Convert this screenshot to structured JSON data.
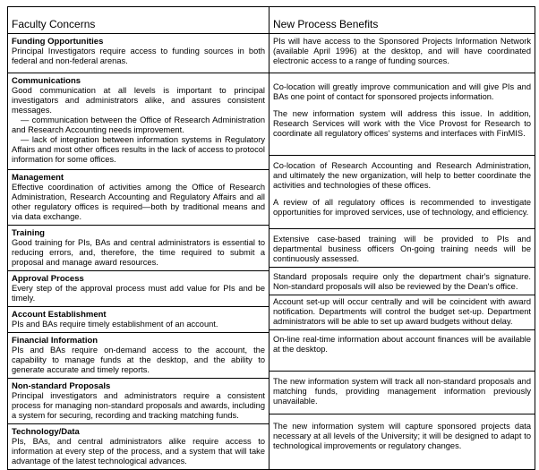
{
  "headers": {
    "left": "Faculty Concerns",
    "right": "New Process Benefits"
  },
  "concerns": [
    {
      "title": "Funding Opportunities",
      "text": [
        "Principal Investigators require access  to funding sources in both federal and non-federal arenas."
      ]
    },
    {
      "title": "Communications",
      "text": [
        "Good communication at all levels is important to principal investigators and administrators alike, and assures consistent messages.",
        "— communication between the Office of Research Administration and Research Accounting needs improvement.",
        "— lack of integration between information systems in Regulatory Affairs and most other offices results in the lack of access to protocol information for some offices."
      ]
    },
    {
      "title": "Management",
      "text": [
        "Effective coordination of activities among the Office of Research Administration, Research Accounting and Regulatory Affairs and all other regulatory offices is required—both by traditional means and via data exchange."
      ]
    },
    {
      "title": "Training",
      "text": [
        "Good training for PIs, BAs and central administrators is essential to reducing errors, and, therefore, the time required to submit a proposal and manage award resources."
      ]
    },
    {
      "title": "Approval Process",
      "text": [
        "Every step of the approval process must add value for PIs and be timely."
      ]
    },
    {
      "title": "Account Establishment",
      "text": [
        "PIs and BAs require timely establishment of an account."
      ]
    },
    {
      "title": "Financial Information",
      "text": [
        "PIs and BAs require on-demand access to the account, the capability to manage funds at the desktop, and the ability to generate accurate and timely reports."
      ]
    },
    {
      "title": "Non-standard Proposals",
      "text": [
        "Principal investigators and administrators require a consistent process for managing non-standard proposals and awards, including a system for securing, recording and tracking matching funds."
      ]
    },
    {
      "title": "Technology/Data",
      "text": [
        "PIs, BAs, and central administrators alike require access to information at every step of the process, and a system that will take advantage of the latest technological advances."
      ]
    }
  ],
  "benefits": [
    [
      "PIs will have access to the Sponsored Projects Information Network (available April 1996) at the desktop, and will have coordinated electronic access to a range of funding sources."
    ],
    [
      "Co-location will greatly improve communication and will give PIs and BAs one point of contact for sponsored projects information.",
      "The new information system will address this issue. In addition, Research Services will work with the Vice Provost for Research to coordinate all regulatory offices' systems and interfaces with FinMIS."
    ],
    [
      "Co-location of Research Accounting and Research Administration, and ultimately the new organization, will help to better coordinate the activities and technologies of these offices.",
      "A review of all regulatory offices is recommended to investigate opportunities for improved services, use of technology, and efficiency."
    ],
    [
      "Extensive case-based training will be provided to PIs and departmental business officers On-going training needs will be continuously assessed."
    ],
    [
      "Standard proposals require only the department chair's signature. Non-standard proposals will also be reviewed by the Dean's office."
    ],
    [
      "Account set-up will occur centrally and will be coincident with award notification. Departments will control the budget set-up.  Department administrators will be able to set up award budgets without delay."
    ],
    [
      "On-line real-time information about account finances will be available at the desktop."
    ],
    [
      "The new information system will track all non-standard proposals and matching funds, providing management information previously unavailable."
    ],
    [
      "The new information system will capture sponsored projects data necessary at all levels of the University; it will be designed to adapt to technological improvements or regulatory changes."
    ]
  ]
}
